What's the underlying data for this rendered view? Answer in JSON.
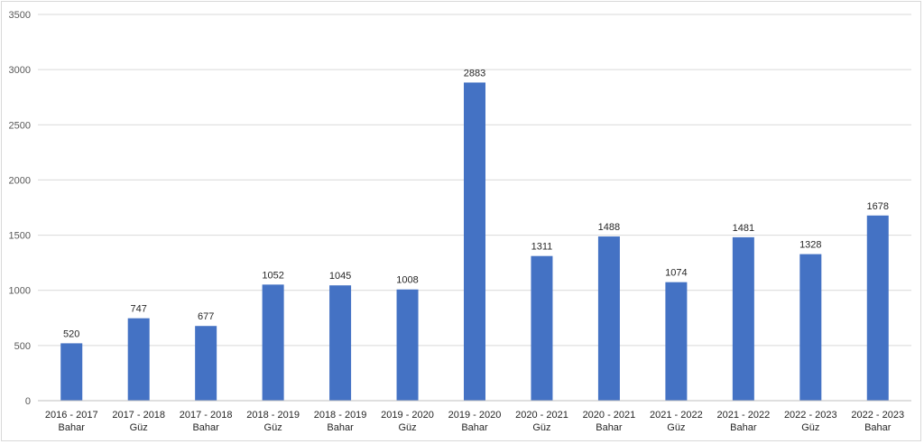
{
  "chart_data": {
    "type": "bar",
    "title": "",
    "xlabel": "",
    "ylabel": "",
    "categories": [
      [
        "2016 - 2017",
        "Bahar"
      ],
      [
        "2017 - 2018",
        "Güz"
      ],
      [
        "2017 - 2018",
        "Bahar"
      ],
      [
        "2018 - 2019",
        "Güz"
      ],
      [
        "2018 - 2019",
        "Bahar"
      ],
      [
        "2019 - 2020",
        "Güz"
      ],
      [
        "2019 - 2020",
        "Bahar"
      ],
      [
        "2020 - 2021",
        "Güz"
      ],
      [
        "2020 - 2021",
        "Bahar"
      ],
      [
        "2021 - 2022",
        "Güz"
      ],
      [
        "2021 - 2022",
        "Bahar"
      ],
      [
        "2022 - 2023",
        "Güz"
      ],
      [
        "2022 - 2023",
        "Bahar"
      ]
    ],
    "values": [
      520,
      747,
      677,
      1052,
      1045,
      1008,
      2883,
      1311,
      1488,
      1074,
      1481,
      1328,
      1678
    ],
    "data_labels": [
      "520",
      "747",
      "677",
      "1052",
      "1045",
      "1008",
      "2883",
      "1311",
      "1488",
      "1074",
      "1481",
      "1328",
      "1678"
    ],
    "ylim": [
      0,
      3500
    ],
    "yticks": [
      "0",
      "500",
      "1000",
      "1500",
      "2000",
      "2500",
      "3000",
      "3500"
    ],
    "grid": true,
    "legend": "none",
    "bar_color": "#4472C4",
    "grid_color": "#d9d9d9"
  }
}
